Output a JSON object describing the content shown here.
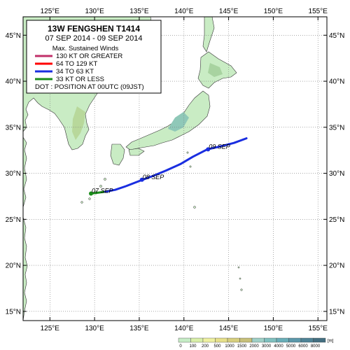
{
  "map": {
    "title": "13W  FENGSHEN  T1414",
    "subtitle": "07 SEP 2014 - 09 SEP 2014",
    "lon_ticks": [
      "125°E",
      "130°E",
      "135°E",
      "140°E",
      "145°E",
      "150°E",
      "155°E"
    ],
    "lat_ticks": [
      "45°N",
      "40°N",
      "35°N",
      "30°N",
      "25°N",
      "20°N",
      "15°N"
    ],
    "lon_range": [
      122,
      156
    ],
    "lat_range": [
      14,
      47
    ],
    "legend": {
      "heading": "Max. Sustained Winds",
      "items": [
        {
          "label": "130 KT OR GREATER",
          "color": "#c0306a"
        },
        {
          "label": "64 TO 129 KT",
          "color": "#ff0000"
        },
        {
          "label": "34 TO 63 KT",
          "color": "#1a2ee0"
        },
        {
          "label": "33 KT OR LESS",
          "color": "#1a8c1a"
        }
      ],
      "dot_note": "DOT : POSITION AT 00UTC (09JST)"
    },
    "track": {
      "segments": [
        {
          "category": "33 KT OR LESS",
          "color": "#1a8c1a",
          "points": [
            [
              129.6,
              27.8
            ],
            [
              130.4,
              27.9
            ],
            [
              131.2,
              28.0
            ]
          ]
        },
        {
          "category": "34 TO 63 KT",
          "color": "#1a2ee0",
          "points": [
            [
              131.2,
              28.0
            ],
            [
              132.3,
              28.2
            ],
            [
              133.5,
              28.6
            ],
            [
              135.1,
              29.2
            ],
            [
              136.5,
              29.7
            ],
            [
              138.0,
              30.3
            ],
            [
              139.6,
              31.0
            ],
            [
              141.0,
              31.8
            ],
            [
              142.6,
              32.6
            ],
            [
              144.0,
              32.9
            ],
            [
              145.6,
              33.3
            ],
            [
              147.0,
              33.8
            ]
          ]
        }
      ],
      "dots": [
        {
          "label": "07 SEP",
          "lon": 129.6,
          "lat": 27.8,
          "color": "#1a8c1a"
        },
        {
          "label": "08 SEP",
          "lon": 135.3,
          "lat": 29.3,
          "color": "#1a2ee0"
        },
        {
          "label": "09 SEP",
          "lon": 142.7,
          "lat": 32.6,
          "color": "#1a2ee0"
        }
      ]
    },
    "elevation_scale": {
      "labels": [
        "0",
        "100",
        "200",
        "500",
        "1000",
        "1500",
        "2000",
        "3000",
        "4000",
        "5000",
        "6000",
        "8000"
      ],
      "unit": "[m]",
      "colors": [
        "#c6ecc6",
        "#d9efa8",
        "#eef0a0",
        "#e6e08a",
        "#d7cf7d",
        "#c8c079",
        "#9fd0c7",
        "#7fc0bf",
        "#69aeb8",
        "#5b98aa",
        "#4f8396",
        "#436f81"
      ]
    }
  }
}
